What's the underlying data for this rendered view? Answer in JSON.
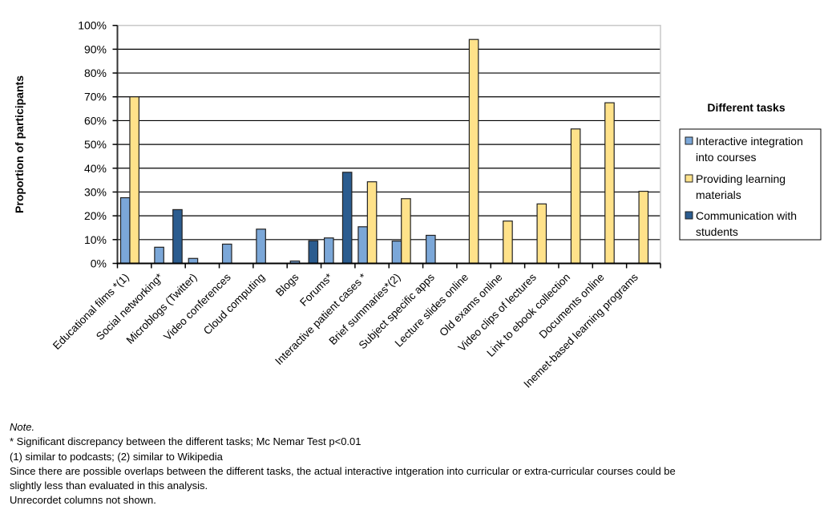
{
  "chart_data": {
    "type": "bar",
    "title": "",
    "xlabel": "",
    "ylabel": "Proportion of participants",
    "ylim": [
      0,
      100
    ],
    "y_ticks": [
      "0%",
      "10%",
      "20%",
      "30%",
      "40%",
      "50%",
      "60%",
      "70%",
      "80%",
      "90%",
      "100%"
    ],
    "y_tick_values": [
      0,
      10,
      20,
      30,
      40,
      50,
      60,
      70,
      80,
      90,
      100
    ],
    "grid": true,
    "legend_title": "Different tasks",
    "legend_position": "right",
    "categories": [
      "Educational films *(1)",
      "Social networking*",
      "Microblogs (Twitter)",
      "Video conferences",
      "Cloud computing",
      "Blogs",
      "Forums*",
      "Interactive patient cases *",
      "Brief summaries*(2)",
      "Subject specific apps",
      "Lecture slides online",
      "Old exams online",
      "Video clips of lectures",
      "Link to ebook collection",
      "Documents online",
      "Inemet-based learning programs"
    ],
    "series": [
      {
        "name": "Interactive integration into courses",
        "legend_lines": [
          "Interactive integration",
          "into courses"
        ],
        "color": "#7BA7D8",
        "values": [
          27.6,
          6.8,
          2.1,
          8.1,
          14.4,
          1.0,
          10.7,
          15.4,
          9.4,
          11.8,
          null,
          null,
          null,
          null,
          null,
          null
        ]
      },
      {
        "name": "Providing learning materials",
        "legend_lines": [
          "Providing learning",
          "materials"
        ],
        "color": "#FFE28A",
        "values": [
          70.0,
          null,
          null,
          null,
          null,
          null,
          null,
          34.3,
          27.2,
          null,
          94.1,
          17.8,
          25.0,
          56.5,
          67.5,
          30.3
        ]
      },
      {
        "name": "Communication with students",
        "legend_lines": [
          "Communication with",
          "students"
        ],
        "color": "#2B5C8F",
        "values": [
          null,
          22.6,
          null,
          null,
          null,
          9.5,
          38.3,
          null,
          null,
          null,
          null,
          null,
          null,
          null,
          null,
          null
        ]
      }
    ]
  },
  "notes": {
    "heading": "Note.",
    "lines": [
      "*  Significant discrepancy between the different tasks; Mc Nemar Test p<0.01",
      "(1) similar to podcasts; (2) similar to Wikipedia",
      "Since there are possible overlaps between the different tasks, the actual interactive intgeration into curricular or extra-curricular courses could be",
      "slightly less than evaluated in this analysis.",
      "Unrecordet columns not shown."
    ]
  }
}
